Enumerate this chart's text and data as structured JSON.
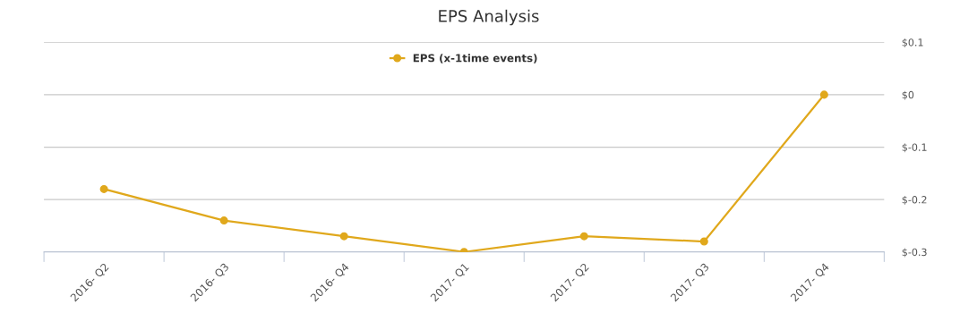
{
  "chart_data": {
    "type": "line",
    "title": "EPS Analysis",
    "categories": [
      "2016- Q2",
      "2016- Q3",
      "2016- Q4",
      "2017- Q1",
      "2017- Q2",
      "2017- Q3",
      "2017- Q4"
    ],
    "series": [
      {
        "name": "EPS (x-1time events)",
        "color": "#e0a81c",
        "values": [
          -0.18,
          -0.24,
          -0.27,
          -0.3,
          -0.27,
          -0.28,
          0.0
        ]
      }
    ],
    "ylim": [
      -0.3,
      0.1
    ],
    "yticks": [
      {
        "value": -0.3,
        "label": "$-0.3"
      },
      {
        "value": -0.2,
        "label": "$-0.2"
      },
      {
        "value": -0.1,
        "label": "$-0.1"
      },
      {
        "value": 0,
        "label": "$0"
      },
      {
        "value": 0.1,
        "label": "$0.1"
      }
    ],
    "grid": "y",
    "legend": "top",
    "marker": "circle",
    "line_style": "solid"
  }
}
